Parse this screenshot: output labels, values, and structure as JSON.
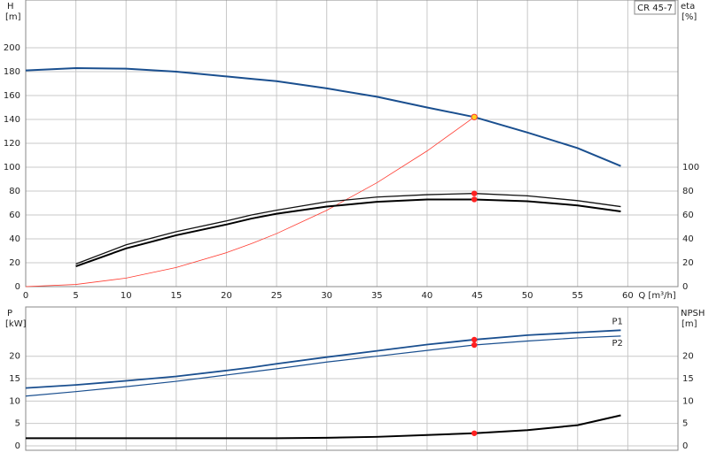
{
  "chart_data": [
    {
      "type": "line",
      "ylabel": "H",
      "yunit": "[m]",
      "y2label": "eta",
      "y2unit": "[%]",
      "xlabel": "Q [m³/h]",
      "annotation": "CR 45-7",
      "x": [
        0,
        5,
        10,
        15,
        20,
        22.5,
        25,
        30,
        35,
        40,
        44.7,
        50,
        55,
        59.3
      ],
      "xlim": [
        0,
        65
      ],
      "xticks": [
        0,
        5,
        10,
        15,
        20,
        25,
        30,
        35,
        40,
        45,
        50,
        55,
        60
      ],
      "ylim": [
        0,
        240
      ],
      "yticks": [
        0,
        20,
        40,
        60,
        80,
        100,
        120,
        140,
        160,
        180,
        200
      ],
      "y2lim": [
        0,
        240
      ],
      "y2ticks": [
        0,
        20,
        40,
        60,
        80,
        100
      ],
      "grid": true,
      "duty_q": 44.7,
      "series": [
        {
          "color": "#ff3b30",
          "width": 0.8,
          "values": [
            0,
            1.8,
            7.1,
            16,
            28.4,
            36,
            44.4,
            63.9,
            87,
            113.6,
            142,
            null,
            null,
            null
          ]
        },
        {
          "color": "#1a4f8f",
          "width": 2,
          "marker_color": "#ffd21f",
          "values": [
            181,
            183,
            182.5,
            180,
            176,
            174,
            172,
            166,
            159,
            150,
            142,
            129,
            116,
            101
          ]
        },
        {
          "color": "#111111",
          "width": 1.3,
          "axis": "y2",
          "marker_color": "#ff2020",
          "values": [
            null,
            19,
            35,
            46,
            55,
            60,
            64,
            71,
            75,
            77,
            78,
            76,
            72,
            67
          ]
        },
        {
          "color": "#000000",
          "width": 2,
          "axis": "y2",
          "marker_color": "#ff2020",
          "values": [
            null,
            17,
            32,
            43,
            52,
            57,
            61,
            67,
            71,
            73,
            73,
            71.5,
            68,
            63
          ]
        }
      ]
    },
    {
      "type": "line",
      "ylabel": "P",
      "yunit": "[kW]",
      "y2label": "NPSH",
      "y2unit": "[m]",
      "x": [
        0,
        5,
        10,
        15,
        20,
        22.5,
        25,
        30,
        35,
        40,
        44.7,
        50,
        55,
        59.3
      ],
      "ylim": [
        -1,
        31
      ],
      "yticks": [
        0,
        5,
        10,
        15,
        20
      ],
      "y2lim": [
        -1,
        31
      ],
      "y2ticks": [
        0,
        5,
        10,
        15,
        20
      ],
      "grid": true,
      "duty_q": 44.7,
      "series": [
        {
          "name": "P1",
          "color": "#1a4f8f",
          "width": 1.8,
          "marker_color": "#ff2020",
          "values": [
            12.9,
            13.6,
            14.5,
            15.5,
            16.8,
            17.5,
            18.3,
            19.8,
            21.2,
            22.6,
            23.7,
            24.7,
            25.3,
            25.8
          ]
        },
        {
          "name": "P2",
          "color": "#1a4f8f",
          "width": 1.2,
          "marker_color": "#ff2020",
          "values": [
            11.1,
            12.1,
            13.2,
            14.4,
            15.8,
            16.5,
            17.2,
            18.7,
            20.0,
            21.3,
            22.5,
            23.4,
            24.1,
            24.5
          ]
        },
        {
          "color": "#000000",
          "width": 2,
          "axis": "y2",
          "marker_color": "#ff2020",
          "values": [
            1.7,
            1.7,
            1.7,
            1.7,
            1.7,
            1.7,
            1.7,
            1.8,
            2.0,
            2.4,
            2.8,
            3.5,
            4.6,
            6.8
          ]
        }
      ]
    }
  ]
}
